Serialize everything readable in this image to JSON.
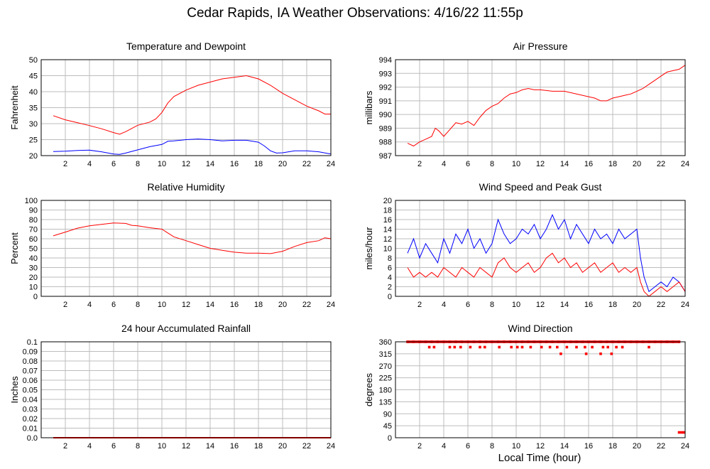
{
  "page": {
    "title": "Cedar Rapids, IA Weather Observations: 4/16/22 11:55p",
    "xaxis_title": "Local Time (hour)"
  },
  "colors": {
    "red": "#ff0000",
    "blue": "#0000ff",
    "grid": "#bdbdbd"
  },
  "chart_data": [
    {
      "id": "temp",
      "type": "line",
      "title": "Temperature and Dewpoint",
      "ylabel": "Fahrenheit",
      "xlabel": "",
      "xlim": [
        0,
        24
      ],
      "ylim": [
        20,
        50
      ],
      "xticks": [
        2,
        4,
        6,
        8,
        10,
        12,
        14,
        16,
        18,
        20,
        22,
        24
      ],
      "yticks": [
        20,
        25,
        30,
        35,
        40,
        45,
        50
      ],
      "grid": true,
      "series": [
        {
          "color": "#ff0000",
          "x": [
            1,
            2,
            3,
            4,
            5,
            6,
            6.5,
            7,
            7.5,
            8,
            9,
            9.5,
            10,
            10.5,
            11,
            12,
            13,
            14,
            15,
            16,
            17,
            18,
            19,
            20,
            21,
            22,
            23,
            23.5,
            24
          ],
          "y": [
            32.5,
            31.2,
            30.3,
            29.4,
            28.4,
            27.2,
            26.7,
            27.5,
            28.5,
            29.5,
            30.5,
            31.5,
            33.5,
            36.5,
            38.5,
            40.5,
            42,
            43,
            44,
            44.5,
            45,
            44,
            42,
            39.5,
            37.5,
            35.5,
            34,
            33,
            33
          ]
        },
        {
          "color": "#0000ff",
          "x": [
            1,
            2,
            3,
            4,
            5,
            6,
            6.5,
            7,
            8,
            9,
            10,
            10.5,
            11,
            12,
            13,
            14,
            15,
            16,
            17,
            18,
            18.5,
            19,
            19.5,
            20,
            21,
            22,
            23,
            24
          ],
          "y": [
            21.3,
            21.4,
            21.6,
            21.7,
            21.2,
            20.5,
            20.4,
            20.8,
            21.8,
            22.8,
            23.5,
            24.5,
            24.6,
            25,
            25.2,
            25,
            24.6,
            24.8,
            24.8,
            24.2,
            23,
            21.5,
            20.8,
            20.9,
            21.5,
            21.5,
            21.2,
            20.5
          ]
        }
      ]
    },
    {
      "id": "press",
      "type": "line",
      "title": "Air Pressure",
      "ylabel": "millibars",
      "xlabel": "",
      "xlim": [
        0,
        24
      ],
      "ylim": [
        987,
        994
      ],
      "xticks": [
        2,
        4,
        6,
        8,
        10,
        12,
        14,
        16,
        18,
        20,
        22,
        24
      ],
      "yticks": [
        987,
        988,
        989,
        990,
        991,
        992,
        993,
        994
      ],
      "grid": true,
      "series": [
        {
          "color": "#ff0000",
          "x": [
            1,
            1.5,
            2,
            2.5,
            3,
            3.3,
            3.6,
            4,
            4.5,
            5,
            5.5,
            6,
            6.5,
            7,
            7.5,
            8,
            8.5,
            9,
            9.5,
            10,
            10.5,
            11,
            11.5,
            12,
            13,
            14,
            15,
            16,
            16.5,
            17,
            17.5,
            18,
            18.5,
            19,
            19.5,
            20,
            20.5,
            21,
            21.5,
            22,
            22.5,
            23,
            23.5,
            24
          ],
          "y": [
            987.9,
            987.7,
            988,
            988.2,
            988.4,
            989,
            988.8,
            988.4,
            988.9,
            989.4,
            989.3,
            989.5,
            989.2,
            989.8,
            990.3,
            990.6,
            990.8,
            991.2,
            991.5,
            991.6,
            991.8,
            991.9,
            991.8,
            991.8,
            991.7,
            991.7,
            991.5,
            991.3,
            991.2,
            991,
            991,
            991.2,
            991.3,
            991.4,
            991.5,
            991.7,
            991.9,
            992.2,
            992.5,
            992.8,
            993.1,
            993.2,
            993.3,
            993.6
          ]
        }
      ]
    },
    {
      "id": "rh",
      "type": "line",
      "title": "Relative Humidity",
      "ylabel": "Percent",
      "xlabel": "",
      "xlim": [
        0,
        24
      ],
      "ylim": [
        0,
        100
      ],
      "xticks": [
        2,
        4,
        6,
        8,
        10,
        12,
        14,
        16,
        18,
        20,
        22,
        24
      ],
      "yticks": [
        0,
        10,
        20,
        30,
        40,
        50,
        60,
        70,
        80,
        90,
        100
      ],
      "grid": true,
      "series": [
        {
          "color": "#ff0000",
          "x": [
            1,
            2,
            3,
            4,
            5,
            6,
            7,
            7.5,
            8,
            8.5,
            9,
            10,
            10.5,
            11,
            12,
            13,
            14,
            15,
            16,
            17,
            18,
            19,
            20,
            21,
            22,
            23,
            23.5,
            24
          ],
          "y": [
            63,
            67,
            71,
            73.5,
            75,
            76.5,
            76,
            74,
            73.5,
            72.5,
            71.5,
            70,
            66,
            62,
            58,
            54,
            50,
            48,
            46,
            45,
            45,
            44.5,
            47,
            52,
            56,
            58,
            61,
            60
          ]
        }
      ]
    },
    {
      "id": "wind",
      "type": "line",
      "title": "Wind Speed and Peak Gust",
      "ylabel": "miles/hour",
      "xlabel": "",
      "xlim": [
        0,
        24
      ],
      "ylim": [
        0,
        20
      ],
      "xticks": [
        2,
        4,
        6,
        8,
        10,
        12,
        14,
        16,
        18,
        20,
        22,
        24
      ],
      "yticks": [
        0,
        2,
        4,
        6,
        8,
        10,
        12,
        14,
        16,
        18,
        20
      ],
      "grid": true,
      "series": [
        {
          "color": "#0000ff",
          "x": [
            1,
            1.5,
            2,
            2.5,
            3,
            3.5,
            4,
            4.5,
            5,
            5.5,
            6,
            6.5,
            7,
            7.5,
            8,
            8.5,
            9,
            9.5,
            10,
            10.5,
            11,
            11.5,
            12,
            12.5,
            13,
            13.5,
            14,
            14.5,
            15,
            15.5,
            16,
            16.5,
            17,
            17.5,
            18,
            18.5,
            19,
            19.5,
            20,
            20.3,
            20.6,
            21,
            21.5,
            22,
            22.5,
            23,
            23.5,
            24
          ],
          "y": [
            9,
            12,
            8,
            11,
            9,
            7,
            12,
            9,
            13,
            11,
            14,
            10,
            12,
            9,
            11,
            16,
            13,
            11,
            12,
            14,
            13,
            15,
            12,
            14,
            17,
            14,
            16,
            12,
            15,
            13,
            11,
            14,
            12,
            13,
            11,
            14,
            12,
            13,
            14,
            8,
            4,
            1,
            2,
            3,
            2,
            4,
            3,
            1
          ]
        },
        {
          "color": "#ff0000",
          "x": [
            1,
            1.5,
            2,
            2.5,
            3,
            3.5,
            4,
            4.5,
            5,
            5.5,
            6,
            6.5,
            7,
            7.5,
            8,
            8.5,
            9,
            9.5,
            10,
            10.5,
            11,
            11.5,
            12,
            12.5,
            13,
            13.5,
            14,
            14.5,
            15,
            15.5,
            16,
            16.5,
            17,
            17.5,
            18,
            18.5,
            19,
            19.5,
            20,
            20.3,
            20.6,
            21,
            21.5,
            22,
            22.5,
            23,
            23.5,
            24
          ],
          "y": [
            6,
            4,
            5,
            4,
            5,
            4,
            6,
            5,
            4,
            6,
            5,
            4,
            6,
            5,
            4,
            7,
            8,
            6,
            5,
            6,
            7,
            5,
            6,
            8,
            9,
            7,
            8,
            6,
            7,
            5,
            6,
            7,
            5,
            6,
            7,
            5,
            6,
            5,
            6,
            3,
            1,
            0,
            1,
            2,
            1,
            2,
            3,
            1
          ]
        }
      ]
    },
    {
      "id": "rain",
      "type": "line",
      "title": "24 hour Accumulated Rainfall",
      "ylabel": "Inches",
      "xlabel": "",
      "xlim": [
        0,
        24
      ],
      "ylim": [
        0,
        0.1
      ],
      "xticks": [
        2,
        4,
        6,
        8,
        10,
        12,
        14,
        16,
        18,
        20,
        22,
        24
      ],
      "yticks": [
        0.0,
        0.01,
        0.02,
        0.03,
        0.04,
        0.05,
        0.06,
        0.07,
        0.08,
        0.09,
        0.1
      ],
      "ytick_labels": [
        "0.0",
        "0.01",
        "0.02",
        "0.03",
        "0.04",
        "0.05",
        "0.06",
        "0.07",
        "0.08",
        "0.09",
        "0.1"
      ],
      "grid": true,
      "series": [
        {
          "color": "#ff0000",
          "x": [
            1,
            24
          ],
          "y": [
            0,
            0
          ]
        }
      ]
    },
    {
      "id": "dir",
      "type": "scatter",
      "title": "Wind Direction",
      "ylabel": "degrees",
      "xlabel": "Local Time (hour)",
      "xlim": [
        0,
        24
      ],
      "ylim": [
        0,
        360
      ],
      "xticks": [
        2,
        4,
        6,
        8,
        10,
        12,
        14,
        16,
        18,
        20,
        22,
        24
      ],
      "yticks": [
        0,
        45,
        90,
        135,
        180,
        225,
        270,
        315,
        360
      ],
      "grid": true,
      "series": [
        {
          "color": "#ff0000",
          "x": [
            1,
            1.5,
            2,
            2.5,
            3,
            3.5,
            4,
            4.5,
            5,
            5.5,
            6,
            6.5,
            7,
            7.5,
            8,
            8.5,
            9,
            9.5,
            10,
            10.5,
            11,
            11.5,
            12,
            12.5,
            13,
            13.5,
            14,
            14.5,
            15,
            15.5,
            16,
            16.5,
            17,
            17.5,
            18,
            18.5,
            19,
            19.5,
            20,
            20.5,
            21,
            21.5,
            22,
            22.5,
            23,
            23.5,
            2.8,
            3.2,
            4.5,
            4.9,
            5.4,
            6.2,
            7,
            7.4,
            8.6,
            9.6,
            10.1,
            10.5,
            11.2,
            12.1,
            12.8,
            13.4,
            14.2,
            15,
            15.7,
            16.3,
            17.2,
            17.6,
            18.3,
            18.8,
            21,
            13.7,
            15.8,
            17,
            17.9,
            23.5,
            23.7,
            23.9
          ],
          "y": [
            360,
            360,
            360,
            360,
            360,
            360,
            360,
            360,
            360,
            360,
            360,
            360,
            360,
            360,
            360,
            360,
            360,
            360,
            360,
            360,
            360,
            360,
            360,
            360,
            360,
            360,
            360,
            360,
            360,
            360,
            360,
            360,
            360,
            360,
            360,
            360,
            360,
            360,
            360,
            360,
            360,
            360,
            360,
            360,
            360,
            360,
            340,
            340,
            340,
            340,
            340,
            340,
            340,
            340,
            340,
            340,
            340,
            340,
            340,
            340,
            340,
            340,
            340,
            340,
            340,
            340,
            340,
            340,
            340,
            340,
            340,
            315,
            315,
            315,
            315,
            20,
            20,
            20
          ]
        }
      ]
    }
  ]
}
